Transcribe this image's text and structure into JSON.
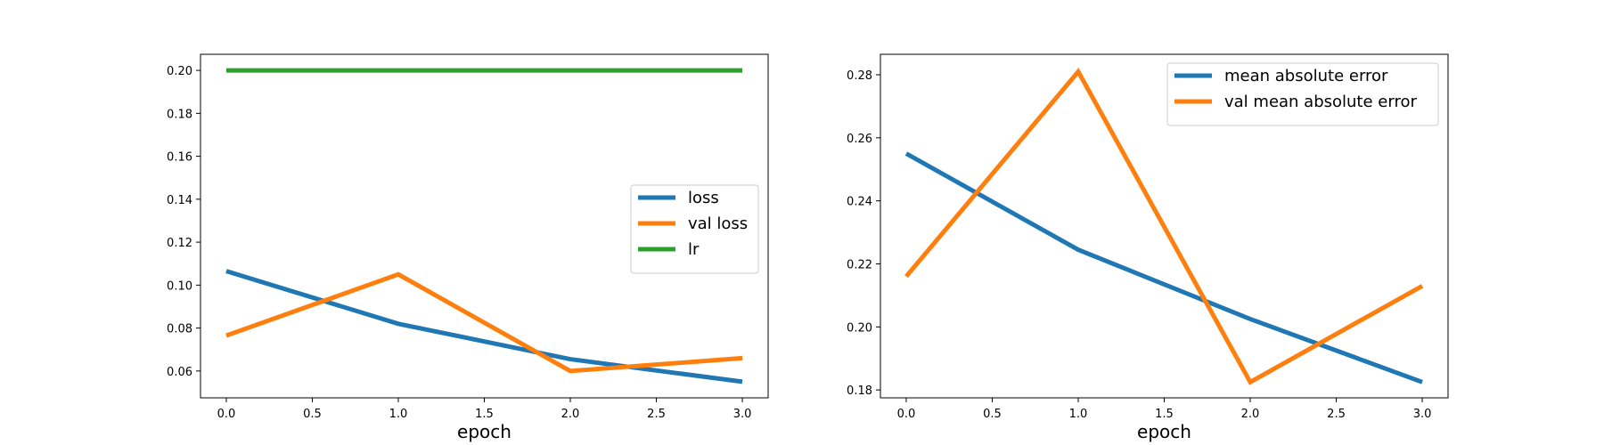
{
  "chart_data": [
    {
      "type": "line",
      "xlabel": "epoch",
      "ylabel": "",
      "x": [
        0,
        1,
        2,
        3
      ],
      "xlim": [
        -0.15,
        3.15
      ],
      "ylim": [
        0.0475,
        0.2075
      ],
      "xticks": [
        0.0,
        0.5,
        1.0,
        1.5,
        2.0,
        2.5,
        3.0
      ],
      "xtick_labels": [
        "0.0",
        "0.5",
        "1.0",
        "1.5",
        "2.0",
        "2.5",
        "3.0"
      ],
      "yticks": [
        0.06,
        0.08,
        0.1,
        0.12,
        0.14,
        0.16,
        0.18,
        0.2
      ],
      "ytick_labels": [
        "0.06",
        "0.08",
        "0.10",
        "0.12",
        "0.14",
        "0.16",
        "0.18",
        "0.20"
      ],
      "grid": false,
      "legend_position": "center-right",
      "series": [
        {
          "name": "loss",
          "color": "#1f77b4",
          "values": [
            0.1065,
            0.082,
            0.0655,
            0.055
          ]
        },
        {
          "name": "val loss",
          "color": "#ff7f0e",
          "values": [
            0.0765,
            0.105,
            0.06,
            0.066
          ]
        },
        {
          "name": "lr",
          "color": "#2ca02c",
          "values": [
            0.2,
            0.2,
            0.2,
            0.2
          ]
        }
      ]
    },
    {
      "type": "line",
      "xlabel": "epoch",
      "ylabel": "",
      "x": [
        0,
        1,
        2,
        3
      ],
      "xlim": [
        -0.15,
        3.15
      ],
      "ylim": [
        0.1775,
        0.2865
      ],
      "xticks": [
        0.0,
        0.5,
        1.0,
        1.5,
        2.0,
        2.5,
        3.0
      ],
      "xtick_labels": [
        "0.0",
        "0.5",
        "1.0",
        "1.5",
        "2.0",
        "2.5",
        "3.0"
      ],
      "yticks": [
        0.18,
        0.2,
        0.22,
        0.24,
        0.26,
        0.28
      ],
      "ytick_labels": [
        "0.18",
        "0.20",
        "0.22",
        "0.24",
        "0.26",
        "0.28"
      ],
      "grid": false,
      "legend_position": "top-right",
      "series": [
        {
          "name": "mean absolute error",
          "color": "#1f77b4",
          "values": [
            0.255,
            0.2245,
            0.2025,
            0.1825
          ]
        },
        {
          "name": "val mean absolute error",
          "color": "#ff7f0e",
          "values": [
            0.216,
            0.281,
            0.1825,
            0.213
          ]
        }
      ]
    }
  ]
}
